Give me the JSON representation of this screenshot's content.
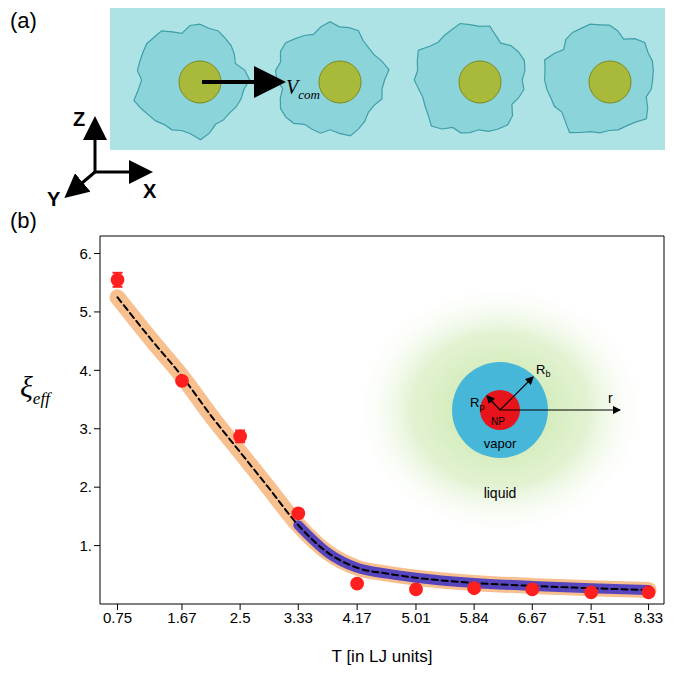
{
  "panel_a": {
    "label": "(a)",
    "axes": {
      "z": "Z",
      "x": "X",
      "y": "Y"
    },
    "arrow_label": {
      "text": "V",
      "sub": "com"
    }
  },
  "panel_b": {
    "label": "(b)"
  },
  "chart_data": {
    "type": "scatter",
    "y_label": {
      "text": "ξ",
      "sub": "eff"
    },
    "x_label": "T [in LJ units]",
    "xlim": [
      0.5,
      8.55
    ],
    "xticks": [
      0.75,
      1.67,
      2.5,
      3.33,
      4.17,
      5.01,
      5.84,
      6.67,
      7.51,
      8.33
    ],
    "ylim": [
      0,
      6.3
    ],
    "yticks": [
      {
        "value": 1,
        "label": "1."
      },
      {
        "value": 2,
        "label": "2."
      },
      {
        "value": 3,
        "label": "3."
      },
      {
        "value": 4,
        "label": "4."
      },
      {
        "value": 5,
        "label": "5."
      },
      {
        "value": 6,
        "label": "6."
      }
    ],
    "grid": false,
    "series": [
      {
        "type": "line",
        "color": "#f7b57a",
        "line_style": "band",
        "x": [
          0.75,
          1.25,
          1.67,
          2.1,
          2.5,
          2.9,
          3.33,
          3.75,
          4.17,
          4.6,
          5.01,
          5.84,
          6.67,
          7.51,
          8.33
        ],
        "values": [
          5.25,
          4.5,
          3.9,
          3.2,
          2.6,
          2.0,
          1.35,
          0.88,
          0.62,
          0.52,
          0.45,
          0.36,
          0.31,
          0.27,
          0.24
        ]
      },
      {
        "type": "line",
        "color": "#3a2fc4",
        "line_style": "band",
        "x": [
          3.33,
          3.75,
          4.17,
          4.6,
          5.01,
          5.84,
          6.67,
          7.51,
          8.33
        ],
        "values": [
          1.35,
          0.88,
          0.62,
          0.52,
          0.45,
          0.36,
          0.31,
          0.27,
          0.24
        ]
      },
      {
        "type": "line",
        "color": "#000000",
        "line_style": "dashed",
        "x": [
          0.75,
          1.25,
          1.67,
          2.1,
          2.5,
          2.9,
          3.33,
          3.75,
          4.17,
          4.6,
          5.01,
          5.84,
          6.67,
          7.51,
          8.33
        ],
        "values": [
          5.25,
          4.5,
          3.9,
          3.2,
          2.6,
          2.0,
          1.35,
          0.88,
          0.62,
          0.52,
          0.45,
          0.36,
          0.31,
          0.27,
          0.24
        ]
      },
      {
        "type": "scatter",
        "color": "#ff1f1f",
        "marker": "circle",
        "x": [
          0.75,
          1.67,
          2.5,
          3.33,
          4.17,
          5.01,
          5.84,
          6.67,
          7.51,
          8.33
        ],
        "values": [
          5.55,
          3.82,
          2.87,
          1.55,
          0.35,
          0.25,
          0.27,
          0.25,
          0.2,
          0.2
        ],
        "errors": [
          0.12,
          0.05,
          0.1,
          0.07,
          0.05,
          0.04,
          0.03,
          0.03,
          0.03,
          0.03
        ]
      }
    ]
  },
  "inset": {
    "particle": "NP",
    "vapor": "vapor",
    "liquid": "liquid",
    "r_p": {
      "text": "R",
      "sub": "p"
    },
    "r_b": {
      "text": "R",
      "sub": "b"
    },
    "r": "r"
  }
}
